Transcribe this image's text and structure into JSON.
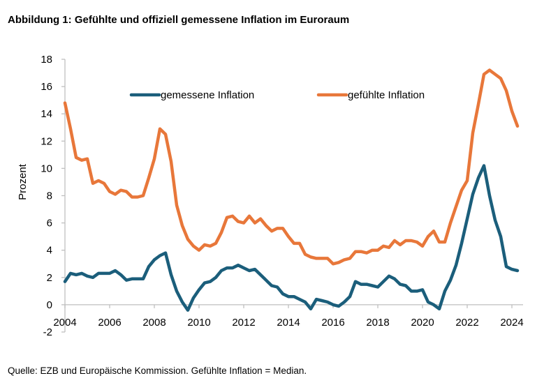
{
  "title": "Abbildung 1: Gefühlte und offiziell gemessene Inflation im Euroraum",
  "source": "Quelle: EZB und Europäische Kommission. Gefühlte Inflation = Median.",
  "colors": {
    "measured": "#1b5e7b",
    "perceived": "#e8773a",
    "axis": "#bfbfbf"
  },
  "chart_data": {
    "type": "line",
    "title": "Abbildung 1: Gefühlte und offiziell gemessene Inflation im Euroraum",
    "xlabel": "",
    "ylabel": "Prozent",
    "xlim": [
      2004,
      2024.5
    ],
    "ylim": [
      -2,
      18
    ],
    "yticks": [
      -2,
      0,
      2,
      4,
      6,
      8,
      10,
      12,
      14,
      16,
      18
    ],
    "xticks": [
      2004,
      2006,
      2008,
      2010,
      2012,
      2014,
      2016,
      2018,
      2020,
      2022,
      2024
    ],
    "grid": false,
    "legend": "top",
    "series": [
      {
        "name": "gemessene Inflation",
        "color": "#1b5e7b",
        "x": [
          2004.0,
          2004.25,
          2004.5,
          2004.75,
          2005.0,
          2005.25,
          2005.5,
          2005.75,
          2006.0,
          2006.25,
          2006.5,
          2006.75,
          2007.0,
          2007.25,
          2007.5,
          2007.75,
          2008.0,
          2008.25,
          2008.5,
          2008.75,
          2009.0,
          2009.25,
          2009.5,
          2009.75,
          2010.0,
          2010.25,
          2010.5,
          2010.75,
          2011.0,
          2011.25,
          2011.5,
          2011.75,
          2012.0,
          2012.25,
          2012.5,
          2012.75,
          2013.0,
          2013.25,
          2013.5,
          2013.75,
          2014.0,
          2014.25,
          2014.5,
          2014.75,
          2015.0,
          2015.25,
          2015.5,
          2015.75,
          2016.0,
          2016.25,
          2016.5,
          2016.75,
          2017.0,
          2017.25,
          2017.5,
          2017.75,
          2018.0,
          2018.25,
          2018.5,
          2018.75,
          2019.0,
          2019.25,
          2019.5,
          2019.75,
          2020.0,
          2020.25,
          2020.5,
          2020.75,
          2021.0,
          2021.25,
          2021.5,
          2021.75,
          2022.0,
          2022.25,
          2022.5,
          2022.75,
          2023.0,
          2023.25,
          2023.5,
          2023.75,
          2024.0,
          2024.25
        ],
        "values": [
          1.7,
          2.3,
          2.2,
          2.3,
          2.1,
          2.0,
          2.3,
          2.3,
          2.3,
          2.5,
          2.2,
          1.8,
          1.9,
          1.9,
          1.9,
          2.8,
          3.3,
          3.6,
          3.8,
          2.2,
          1.0,
          0.2,
          -0.4,
          0.5,
          1.1,
          1.6,
          1.7,
          2.0,
          2.5,
          2.7,
          2.7,
          2.9,
          2.7,
          2.5,
          2.6,
          2.2,
          1.8,
          1.4,
          1.3,
          0.8,
          0.6,
          0.6,
          0.4,
          0.2,
          -0.3,
          0.4,
          0.3,
          0.2,
          0.0,
          -0.1,
          0.2,
          0.6,
          1.7,
          1.5,
          1.5,
          1.4,
          1.3,
          1.7,
          2.1,
          1.9,
          1.5,
          1.4,
          1.0,
          1.0,
          1.1,
          0.2,
          0.0,
          -0.3,
          1.0,
          1.8,
          2.9,
          4.5,
          6.3,
          8.1,
          9.3,
          10.2,
          8.0,
          6.2,
          5.0,
          2.8,
          2.6,
          2.5
        ]
      },
      {
        "name": "gefühlte Inflation",
        "color": "#e8773a",
        "x": [
          2004.0,
          2004.25,
          2004.5,
          2004.75,
          2005.0,
          2005.25,
          2005.5,
          2005.75,
          2006.0,
          2006.25,
          2006.5,
          2006.75,
          2007.0,
          2007.25,
          2007.5,
          2007.75,
          2008.0,
          2008.25,
          2008.5,
          2008.75,
          2009.0,
          2009.25,
          2009.5,
          2009.75,
          2010.0,
          2010.25,
          2010.5,
          2010.75,
          2011.0,
          2011.25,
          2011.5,
          2011.75,
          2012.0,
          2012.25,
          2012.5,
          2012.75,
          2013.0,
          2013.25,
          2013.5,
          2013.75,
          2014.0,
          2014.25,
          2014.5,
          2014.75,
          2015.0,
          2015.25,
          2015.5,
          2015.75,
          2016.0,
          2016.25,
          2016.5,
          2016.75,
          2017.0,
          2017.25,
          2017.5,
          2017.75,
          2018.0,
          2018.25,
          2018.5,
          2018.75,
          2019.0,
          2019.25,
          2019.5,
          2019.75,
          2020.0,
          2020.25,
          2020.5,
          2020.75,
          2021.0,
          2021.25,
          2021.5,
          2021.75,
          2022.0,
          2022.25,
          2022.5,
          2022.75,
          2023.0,
          2023.25,
          2023.5,
          2023.75,
          2024.0,
          2024.25
        ],
        "values": [
          14.8,
          12.9,
          10.8,
          10.6,
          10.7,
          8.9,
          9.1,
          8.9,
          8.3,
          8.1,
          8.4,
          8.3,
          7.9,
          7.9,
          8.0,
          9.3,
          10.7,
          12.9,
          12.5,
          10.5,
          7.3,
          5.8,
          4.8,
          4.3,
          4.0,
          4.4,
          4.3,
          4.5,
          5.3,
          6.4,
          6.5,
          6.1,
          6.0,
          6.5,
          6.0,
          6.3,
          5.8,
          5.4,
          5.6,
          5.6,
          5.0,
          4.5,
          4.5,
          3.7,
          3.5,
          3.4,
          3.4,
          3.4,
          3.0,
          3.1,
          3.3,
          3.4,
          3.9,
          3.9,
          3.8,
          4.0,
          4.0,
          4.3,
          4.2,
          4.7,
          4.4,
          4.7,
          4.7,
          4.6,
          4.3,
          5.0,
          5.4,
          4.6,
          4.6,
          6.0,
          7.2,
          8.4,
          9.1,
          12.6,
          14.7,
          16.9,
          17.2,
          16.9,
          16.6,
          15.7,
          14.2,
          13.1
        ]
      }
    ]
  }
}
